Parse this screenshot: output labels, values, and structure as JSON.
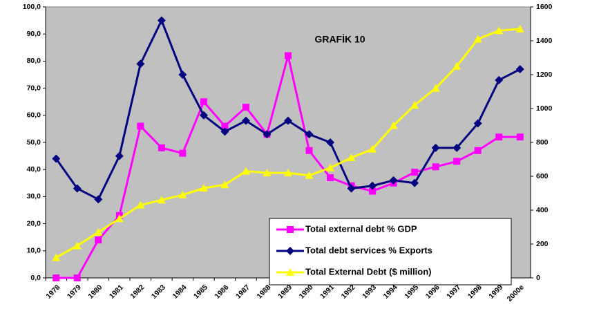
{
  "chart_data": {
    "type": "line",
    "title": "GRAFİK 10",
    "categories": [
      "1978",
      "1979",
      "1980",
      "1981",
      "1982",
      "1983",
      "1984",
      "1985",
      "1986",
      "1987",
      "1988",
      "1989",
      "1990",
      "1991",
      "1992",
      "1993",
      "1994",
      "1995",
      "1996",
      "1997",
      "1998",
      "1999",
      "2000e"
    ],
    "series": [
      {
        "name": "Total external debt  % GDP",
        "color": "#ff00ff",
        "marker": "square",
        "values": [
          0,
          0,
          14,
          23,
          56,
          48,
          46,
          65,
          56,
          63,
          53,
          82,
          47,
          37,
          34,
          32,
          35,
          39,
          41,
          43,
          47,
          52,
          52
        ]
      },
      {
        "name": "Total debt services  % Exports",
        "color": "#000080",
        "marker": "diamond",
        "values": [
          44,
          33,
          29,
          45,
          79,
          95,
          75,
          60,
          54,
          58,
          53,
          58,
          53,
          50,
          33,
          34,
          36,
          35,
          48,
          48,
          57,
          73,
          77
        ]
      },
      {
        "name": "Total External Debt ($ million)",
        "color": "#ffff00",
        "marker": "triangle",
        "axis": "y2",
        "values": [
          120,
          190,
          270,
          350,
          430,
          460,
          490,
          530,
          550,
          630,
          620,
          620,
          605,
          650,
          710,
          760,
          900,
          1020,
          1120,
          1250,
          1410,
          1460,
          1470
        ]
      }
    ],
    "ylim": [
      0,
      100
    ],
    "yticks": [
      {
        "value": 0,
        "label": "0,0"
      },
      {
        "value": 10,
        "label": "10,0"
      },
      {
        "value": 20,
        "label": "20,0"
      },
      {
        "value": 30,
        "label": "30,0"
      },
      {
        "value": 40,
        "label": "40,0"
      },
      {
        "value": 50,
        "label": "50,0"
      },
      {
        "value": 60,
        "label": "60,0"
      },
      {
        "value": 70,
        "label": "70,0"
      },
      {
        "value": 80,
        "label": "80,0"
      },
      {
        "value": 90,
        "label": "90,0"
      },
      {
        "value": 100,
        "label": "100,0"
      }
    ],
    "y2lim": [
      0,
      1600
    ],
    "y2ticks": [
      0,
      200,
      400,
      600,
      800,
      1000,
      1200,
      1400,
      1600
    ],
    "plot_background": "#c0c0c0",
    "legend": "lower right"
  }
}
